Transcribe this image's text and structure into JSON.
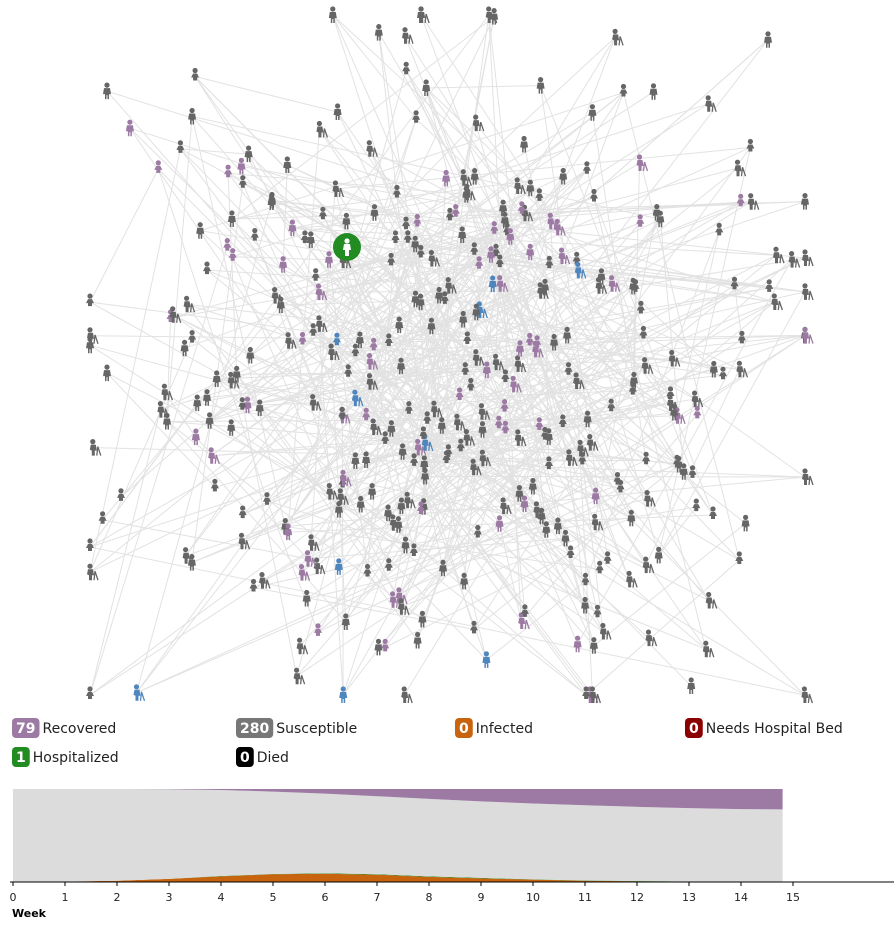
{
  "legend": [
    {
      "count": 79,
      "label": "Recovered",
      "color": "#9c7aa3"
    },
    {
      "count": 280,
      "label": "Susceptible",
      "color": "#777777"
    },
    {
      "count": 0,
      "label": "Infected",
      "color": "#c8630e"
    },
    {
      "count": 0,
      "label": "Needs Hospital Bed",
      "color": "#8b0000"
    },
    {
      "count": 1,
      "label": "Hospitalized",
      "color": "#228b22"
    },
    {
      "count": 0,
      "label": "Died",
      "color": "#000000"
    }
  ],
  "chart_data": {
    "type": "area",
    "x_label": "Week",
    "x": [
      0,
      1,
      2,
      3,
      4,
      5,
      6,
      7,
      8,
      9,
      10,
      11,
      12,
      13,
      14,
      14.8
    ],
    "xlim": [
      0,
      17
    ],
    "xticks": [
      0,
      1,
      2,
      3,
      4,
      5,
      6,
      7,
      8,
      9,
      10,
      11,
      12,
      13,
      14,
      15
    ],
    "ylim": [
      0,
      360
    ],
    "series": [
      {
        "color": "#c8630e",
        "values": [
          1,
          2,
          5,
          12,
          22,
          30,
          32,
          28,
          20,
          14,
          9,
          5,
          3,
          1,
          0,
          0
        ]
      },
      {
        "color": "#228b22",
        "values": [
          0,
          0,
          0,
          0,
          1,
          1,
          2,
          2,
          2,
          2,
          1,
          1,
          1,
          1,
          1,
          1
        ]
      },
      {
        "color": "#dcdcdc",
        "values": [
          359,
          358,
          355,
          347,
          333,
          319,
          308,
          302,
          300,
          296,
          294,
          291,
          287,
          284,
          281,
          280
        ]
      },
      {
        "color": "#9c7aa3",
        "values": [
          0,
          0,
          0,
          1,
          4,
          10,
          18,
          28,
          38,
          48,
          56,
          63,
          69,
          74,
          78,
          79
        ]
      }
    ]
  }
}
